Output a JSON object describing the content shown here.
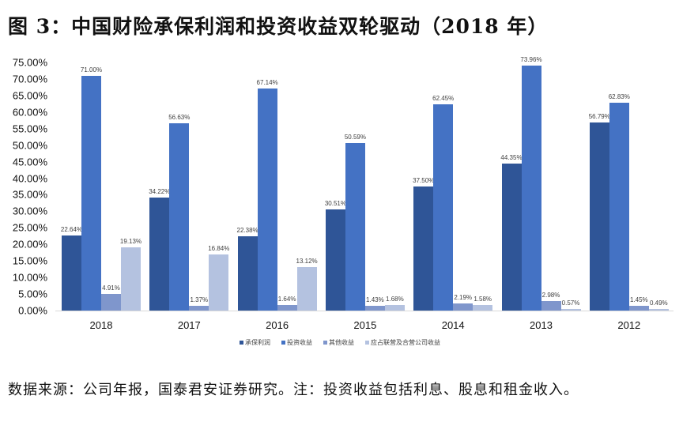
{
  "title": "图 3：中国财险承保利润和投资收益双轮驱动（2018 年）",
  "source_note": "数据来源：公司年报，国泰君安证券研究。注：投资收益包括利息、股息和租金收入。",
  "colors": {
    "underwriting": "#2F5597",
    "investment": "#4472C4",
    "other": "#7F96CC",
    "associates": "#B4C2E0"
  },
  "chart_data": {
    "type": "bar",
    "title": "中国财险承保利润和投资收益双轮驱动（2018 年）",
    "xlabel": "",
    "ylabel": "",
    "ylim": [
      0,
      75
    ],
    "yticks": [
      "0.00%",
      "5.00%",
      "10.00%",
      "15.00%",
      "20.00%",
      "25.00%",
      "30.00%",
      "35.00%",
      "40.00%",
      "45.00%",
      "50.00%",
      "55.00%",
      "60.00%",
      "65.00%",
      "70.00%",
      "75.00%"
    ],
    "grid": false,
    "legend_position": "bottom",
    "categories": [
      "2018",
      "2017",
      "2016",
      "2015",
      "2014",
      "2013",
      "2012"
    ],
    "series": [
      {
        "name": "承保利润",
        "values": [
          22.64,
          34.22,
          22.38,
          30.51,
          37.5,
          44.35,
          56.79
        ],
        "labels": [
          "22.64%",
          "34.22%",
          "22.38%",
          "30.51%",
          "37.50%",
          "44.35%",
          "56.79%"
        ]
      },
      {
        "name": "投资收益",
        "values": [
          71.0,
          56.63,
          67.14,
          50.59,
          62.45,
          73.96,
          62.83
        ],
        "labels": [
          "71.00%",
          "56.63%",
          "67.14%",
          "50.59%",
          "62.45%",
          "73.96%",
          "62.83%"
        ]
      },
      {
        "name": "其他收益",
        "values": [
          4.91,
          1.37,
          1.64,
          1.43,
          2.19,
          2.98,
          1.45
        ],
        "labels": [
          "4.91%",
          "1.37%",
          "1.64%",
          "1.43%",
          "2.19%",
          "2.98%",
          "1.45%"
        ]
      },
      {
        "name": "应占联营及合营公司收益",
        "values": [
          19.13,
          16.84,
          13.12,
          1.68,
          1.58,
          0.57,
          0.49
        ],
        "labels": [
          "19.13%",
          "16.84%",
          "13.12%",
          "1.68%",
          "1.58%",
          "0.57%",
          "0.49%"
        ]
      }
    ]
  }
}
